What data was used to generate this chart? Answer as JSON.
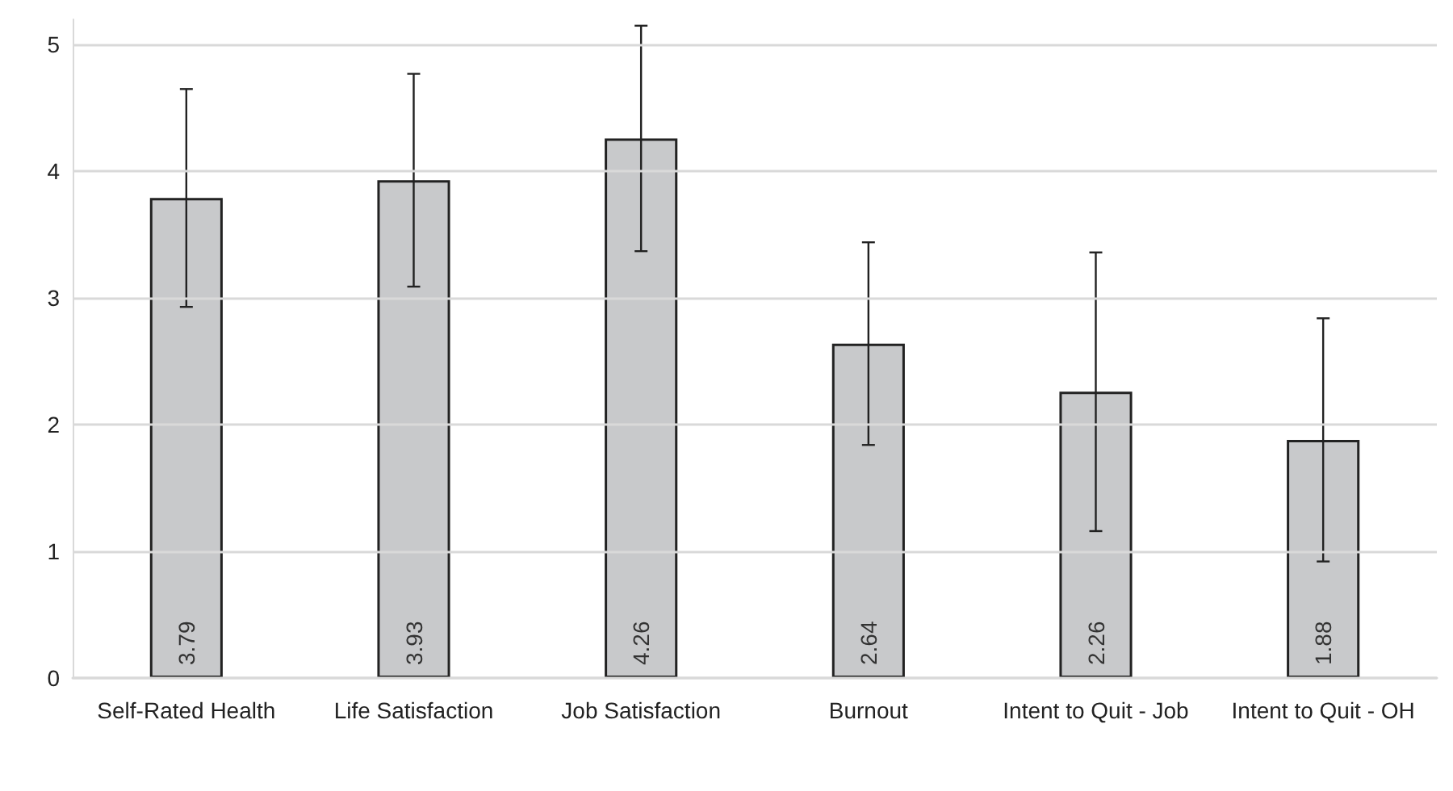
{
  "chart_data": {
    "type": "bar",
    "categories": [
      "Self-Rated Health",
      "Life Satisfaction",
      "Job Satisfaction",
      "Burnout",
      "Intent to Quit - Job",
      "Intent to Quit - OH"
    ],
    "values": [
      3.79,
      3.93,
      4.26,
      2.64,
      2.26,
      1.88
    ],
    "errors": [
      0.86,
      0.84,
      0.89,
      0.8,
      1.1,
      0.96
    ],
    "color": "#c8c9cb",
    "data_labels": true,
    "ylim": [
      0,
      5.2
    ],
    "yticks": [
      0,
      1,
      2,
      3,
      4,
      5
    ],
    "grid": "y"
  }
}
